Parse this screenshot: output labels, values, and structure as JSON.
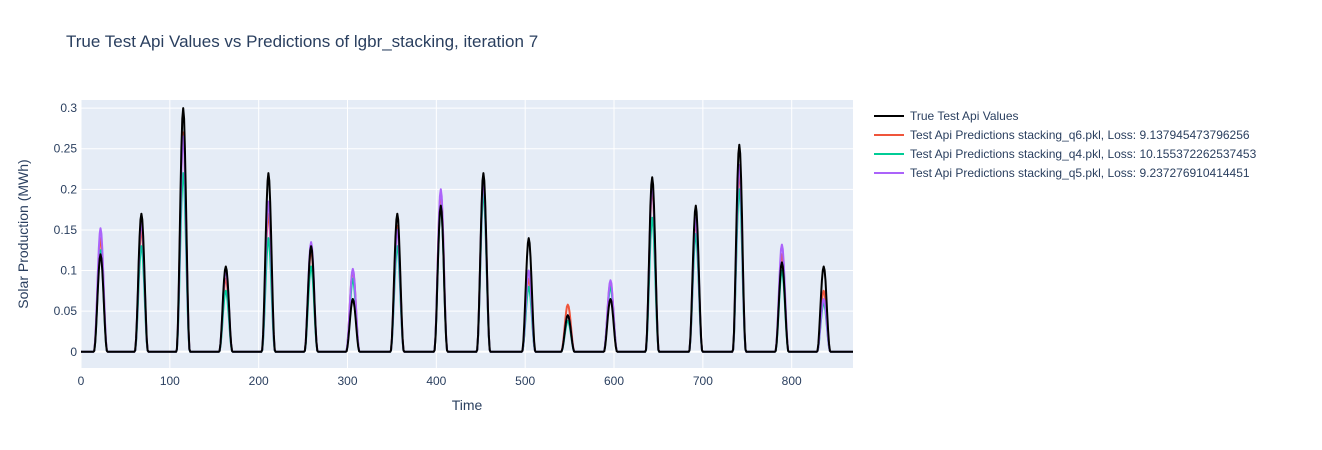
{
  "chart_data": {
    "type": "line",
    "title": "True Test Api Values vs Predictions of lgbr_stacking, iteration 7",
    "xlabel": "Time",
    "ylabel": "Solar Production (MWh)",
    "xlim": [
      0,
      869
    ],
    "ylim": [
      -0.02,
      0.31
    ],
    "x_ticks": [
      "0",
      "100",
      "200",
      "300",
      "400",
      "500",
      "600",
      "700",
      "800"
    ],
    "y_ticks": [
      "0",
      "0.05",
      "0.1",
      "0.15",
      "0.2",
      "0.25",
      "0.3"
    ],
    "grid": true,
    "legend_position": "right",
    "plot_background": "#e5ecf6",
    "day_centers": [
      22,
      68,
      115,
      163,
      211,
      259,
      306,
      356,
      405,
      453,
      504,
      548,
      596,
      643,
      692,
      741,
      789,
      836
    ],
    "series": [
      {
        "name": "True Test Api Values",
        "color": "#000000",
        "peaks": [
          0.12,
          0.17,
          0.3,
          0.105,
          0.22,
          0.13,
          0.065,
          0.17,
          0.18,
          0.22,
          0.14,
          0.045,
          0.065,
          0.215,
          0.18,
          0.255,
          0.11,
          0.105
        ]
      },
      {
        "name": "Test Api Predictions stacking_q6.pkl, Loss: 9.137945473796256",
        "color": "#ef553b",
        "peaks": [
          0.14,
          0.15,
          0.27,
          0.09,
          0.17,
          0.125,
          0.1,
          0.155,
          0.195,
          0.21,
          0.09,
          0.058,
          0.085,
          0.2,
          0.16,
          0.22,
          0.12,
          0.075
        ]
      },
      {
        "name": "Test Api Predictions stacking_q4.pkl, Loss: 10.155372262537453",
        "color": "#00cc96",
        "peaks": [
          0.125,
          0.13,
          0.22,
          0.075,
          0.14,
          0.105,
          0.09,
          0.13,
          0.18,
          0.195,
          0.08,
          0.038,
          0.08,
          0.165,
          0.145,
          0.2,
          0.1,
          0.06
        ]
      },
      {
        "name": "Test Api Predictions stacking_q5.pkl, Loss: 9.237276910414451",
        "color": "#ab63fa",
        "peaks": [
          0.152,
          0.16,
          0.265,
          0.1,
          0.185,
          0.135,
          0.102,
          0.15,
          0.2,
          0.21,
          0.1,
          0.045,
          0.088,
          0.205,
          0.165,
          0.23,
          0.132,
          0.065
        ]
      }
    ]
  }
}
